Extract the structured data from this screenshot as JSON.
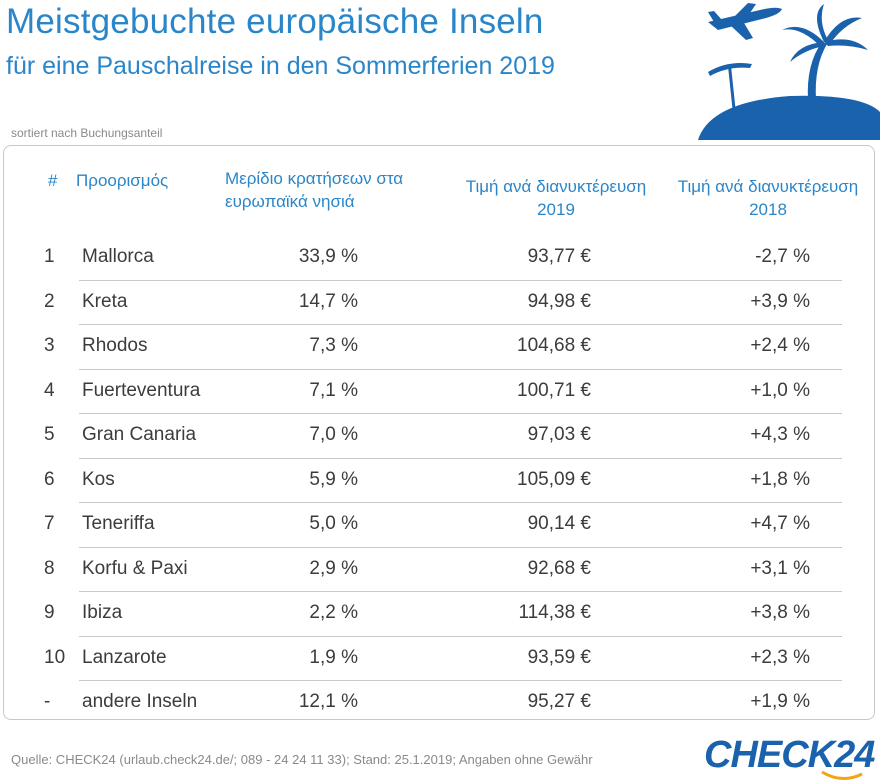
{
  "title": "Meistgebuchte europäische Inseln",
  "subtitle": "für eine Pauschalreise in den Sommerferien 2019",
  "note": "sortiert nach Buchungsanteil",
  "source": "Quelle: CHECK24 (urlaub.check24.de/; 089 - 24 24 11 33); Stand: 25.1.2019; Angaben ohne Gewähr",
  "brand": "CHECK24",
  "icons": [
    "airplane-icon",
    "palm-island-icon",
    "parasol-icon"
  ],
  "colors": {
    "accent": "#2a86c8",
    "brand": "#1b62ad",
    "text": "#3c3c3c"
  },
  "chart_data": {
    "type": "table",
    "columns": [
      "#",
      "Προορισμός",
      "Μερίδιο κρατήσεων στα ευρωπαϊκά νησιά",
      "Τιμή ανά διανυκτέρευση 2019",
      "Τιμή ανά διανυκτέρευση 2018"
    ],
    "rows": [
      [
        "1",
        "Mallorca",
        "33,9 %",
        "93,77 €",
        "-2,7 %"
      ],
      [
        "2",
        "Kreta",
        "14,7 %",
        "94,98 €",
        "+3,9 %"
      ],
      [
        "3",
        "Rhodos",
        "7,3 %",
        "104,68 €",
        "+2,4 %"
      ],
      [
        "4",
        "Fuerteventura",
        "7,1 %",
        "100,71 €",
        "+1,0 %"
      ],
      [
        "5",
        "Gran Canaria",
        "7,0 %",
        "97,03 €",
        "+4,3 %"
      ],
      [
        "6",
        "Kos",
        "5,9 %",
        "105,09 €",
        "+1,8 %"
      ],
      [
        "7",
        "Teneriffa",
        "5,0 %",
        "90,14 €",
        "+4,7 %"
      ],
      [
        "8",
        "Korfu & Paxi",
        "2,9 %",
        "92,68 €",
        "+3,1 %"
      ],
      [
        "9",
        "Ibiza",
        "2,2 %",
        "114,38 €",
        "+3,8 %"
      ],
      [
        "10",
        "Lanzarote",
        "1,9 %",
        "93,59 €",
        "+2,3 %"
      ],
      [
        "-",
        "andere Inseln",
        "12,1 %",
        "95,27 €",
        "+1,9 %"
      ]
    ]
  }
}
